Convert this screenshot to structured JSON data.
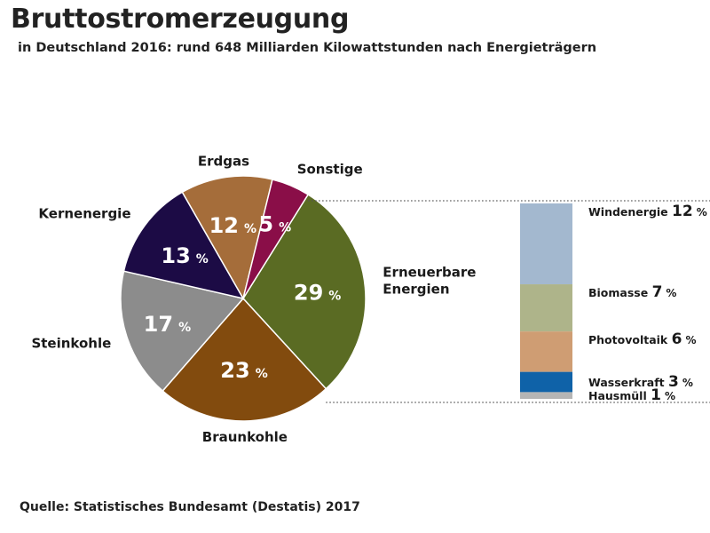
{
  "header": {
    "title": "Bruttostromerzeugung",
    "subtitle": "in Deutschland 2016: rund 648 Milliarden Kilowattstunden nach Energieträgern"
  },
  "footer": {
    "source": "Quelle: Statistisches Bundesamt (Destatis) 2017"
  },
  "chart_data": [
    {
      "type": "pie",
      "unit": "%",
      "slices": [
        {
          "label": "Erneuerbare\nEnergien",
          "value": 29,
          "color": "#5a6b23"
        },
        {
          "label": "Braunkohle",
          "value": 23,
          "color": "#824b0e"
        },
        {
          "label": "Steinkohle",
          "value": 17,
          "color": "#8c8c8c"
        },
        {
          "label": "Kernenergie",
          "value": 13,
          "color": "#1c0b45"
        },
        {
          "label": "Erdgas",
          "value": 12,
          "color": "#a56d3a"
        },
        {
          "label": "Sonstige",
          "value": 5,
          "color": "#8a0e48"
        }
      ]
    },
    {
      "type": "bar",
      "stacked": true,
      "unit": "%",
      "segments": [
        {
          "label": "Windenergie",
          "value": 12,
          "color": "#a3b8cf"
        },
        {
          "label": "Biomasse",
          "value": 7,
          "color": "#aeb48a"
        },
        {
          "label": "Photovoltaik",
          "value": 6,
          "color": "#cf9d73"
        },
        {
          "label": "Wasserkraft",
          "value": 3,
          "color": "#0f62a8"
        },
        {
          "label": "Hausmüll",
          "value": 1,
          "color": "#b5b5b5"
        }
      ]
    }
  ]
}
